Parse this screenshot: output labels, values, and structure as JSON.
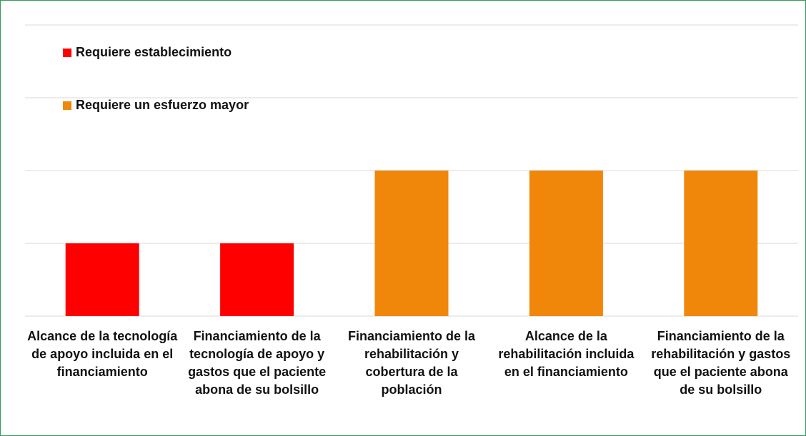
{
  "chart_data": {
    "type": "bar",
    "categories": [
      "Alcance de la tecnología de apoyo incluida en el financiamiento",
      "Financiamiento de la tecnología de apoyo y gastos que el paciente abona de su bolsillo",
      "Financiamiento de la rehabilitación y cobertura de la población",
      "Alcance de la rehabilitación incluida en el financiamiento",
      "Financiamiento de la rehabilitación y gastos que el paciente abona de su bolsillo"
    ],
    "series": [
      {
        "name": "Requiere establecimiento",
        "color": "#ff0000",
        "values": [
          1,
          1,
          null,
          null,
          null
        ]
      },
      {
        "name": "Requiere un esfuerzo mayor",
        "color": "#f0870a",
        "values": [
          null,
          null,
          2,
          2,
          2
        ]
      }
    ],
    "ylim": [
      0,
      4
    ],
    "yticks": [
      0,
      1,
      2,
      3,
      4
    ],
    "grid": true,
    "legend": "top-left"
  }
}
